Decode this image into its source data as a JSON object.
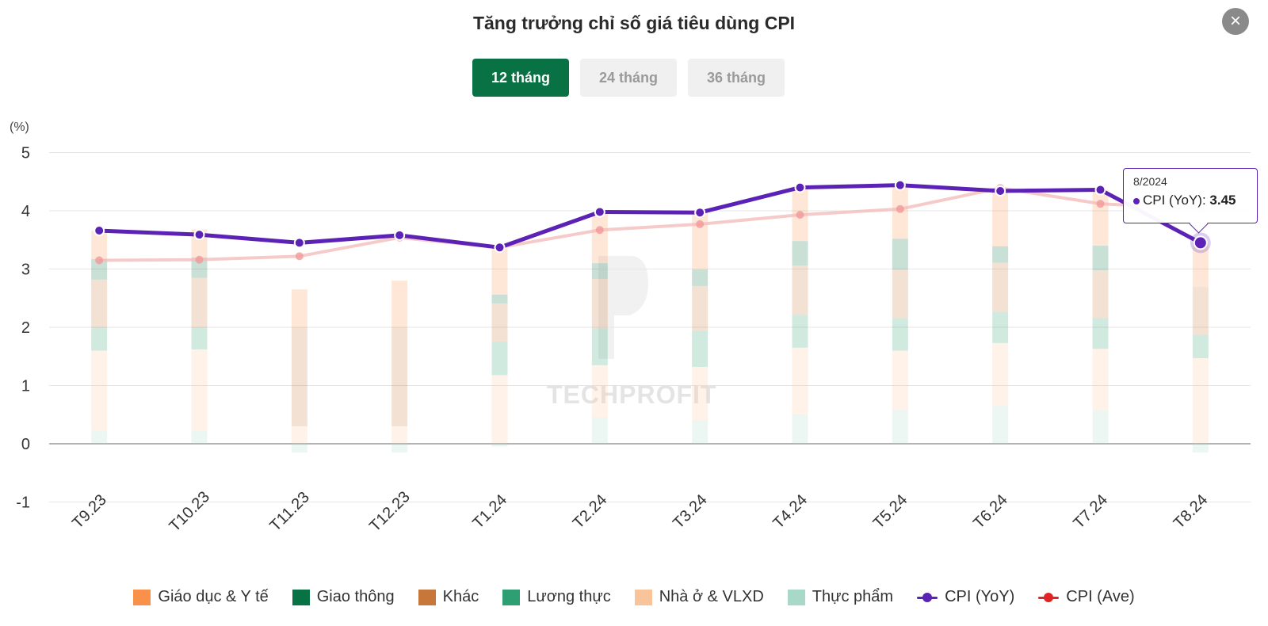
{
  "title": "Tăng trưởng chỉ số giá tiêu dùng CPI",
  "close_icon": "close-icon",
  "tabs": [
    {
      "label": "12 tháng",
      "active": true
    },
    {
      "label": "24 tháng",
      "active": false
    },
    {
      "label": "36 tháng",
      "active": false
    }
  ],
  "watermark": "TECHPROFIT",
  "tooltip": {
    "date": "8/2024",
    "series_label": "CPI (YoY): ",
    "value": "3.45"
  },
  "colors": {
    "cpi_yoy": "#5b22b5",
    "cpi_ave": "#f2a6a6",
    "active_tab": "#087245"
  },
  "chart_data": {
    "type": "bar",
    "unit_label": "(%)",
    "categories": [
      "T9.23",
      "T10.23",
      "T11.23",
      "T12.23",
      "T1.24",
      "T2.24",
      "T3.24",
      "T4.24",
      "T5.24",
      "T6.24",
      "T7.24",
      "T8.24"
    ],
    "ylim": [
      -1,
      5
    ],
    "yticks": [
      "-1",
      "0",
      "1",
      "2",
      "3",
      "4",
      "5"
    ],
    "grid": true,
    "legend_position": "bottom",
    "stacked_series": [
      {
        "name": "Thực phẩm",
        "color": "#a8d8c8",
        "values": [
          0.22,
          0.22,
          -0.15,
          -0.15,
          -0.05,
          0.45,
          0.4,
          0.5,
          0.58,
          0.65,
          0.57,
          -0.15
        ]
      },
      {
        "name": "Nhà ở & VLXD",
        "color": "#f9c49a",
        "values": [
          1.38,
          1.4,
          0.3,
          0.3,
          1.18,
          0.9,
          0.92,
          1.15,
          1.02,
          1.08,
          1.06,
          1.47
        ]
      },
      {
        "name": "Lương thực",
        "color": "#2e9e73",
        "values": [
          0.4,
          0.38,
          0.0,
          0.0,
          0.57,
          0.63,
          0.62,
          0.56,
          0.55,
          0.53,
          0.53,
          0.4
        ]
      },
      {
        "name": "Khác",
        "color": "#c8773a",
        "values": [
          0.82,
          0.85,
          1.7,
          1.7,
          0.66,
          0.85,
          0.77,
          0.85,
          0.84,
          0.85,
          0.82,
          0.82
        ]
      },
      {
        "name": "Giao thông",
        "color": "#087245",
        "values": [
          0.35,
          0.35,
          0.0,
          0.0,
          0.15,
          0.27,
          0.28,
          0.42,
          0.53,
          0.28,
          0.42,
          0.0
        ]
      },
      {
        "name": "Giáo dục & Y tế",
        "color": "#f9914a",
        "values": [
          0.49,
          0.48,
          0.65,
          0.8,
          0.8,
          0.88,
          0.97,
          0.94,
          0.94,
          0.99,
          0.96,
          0.76
        ]
      }
    ],
    "series": [
      {
        "name": "CPI (YoY)",
        "type": "line",
        "color": "#5b22b5",
        "values": [
          3.66,
          3.59,
          3.45,
          3.58,
          3.37,
          3.98,
          3.97,
          4.4,
          4.44,
          4.34,
          4.36,
          3.45
        ]
      },
      {
        "name": "CPI (Ave)",
        "type": "line",
        "color": "#e02424",
        "values": [
          3.15,
          3.16,
          3.22,
          3.54,
          3.37,
          3.67,
          3.77,
          3.93,
          4.03,
          4.39,
          4.12,
          4.04
        ]
      }
    ]
  }
}
